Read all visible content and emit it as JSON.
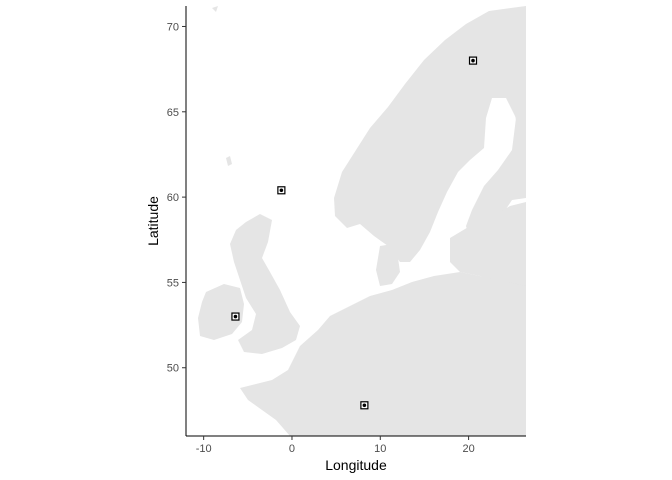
{
  "chart_data": {
    "type": "scatter",
    "title": "",
    "xlabel": "Longitude",
    "ylabel": "Latitude",
    "xlim": [
      -12,
      26.5
    ],
    "ylim": [
      46,
      71.2
    ],
    "x_ticks": [
      -10,
      0,
      10,
      20
    ],
    "y_ticks": [
      50,
      55,
      60,
      65,
      70
    ],
    "x_tick_labels": [
      "-10",
      "0",
      "10",
      "20"
    ],
    "y_tick_labels": [
      "50",
      "55",
      "60",
      "65",
      "70"
    ],
    "grid": false,
    "legend": "none",
    "points": [
      {
        "x": 20.5,
        "y": 68.0
      },
      {
        "x": -1.2,
        "y": 60.4
      },
      {
        "x": -6.4,
        "y": 53.0
      },
      {
        "x": 8.2,
        "y": 47.8
      }
    ]
  },
  "colors": {
    "land": "#e5e5e5",
    "axis": "#000000",
    "marker": "#000000",
    "background": "#ffffff"
  }
}
